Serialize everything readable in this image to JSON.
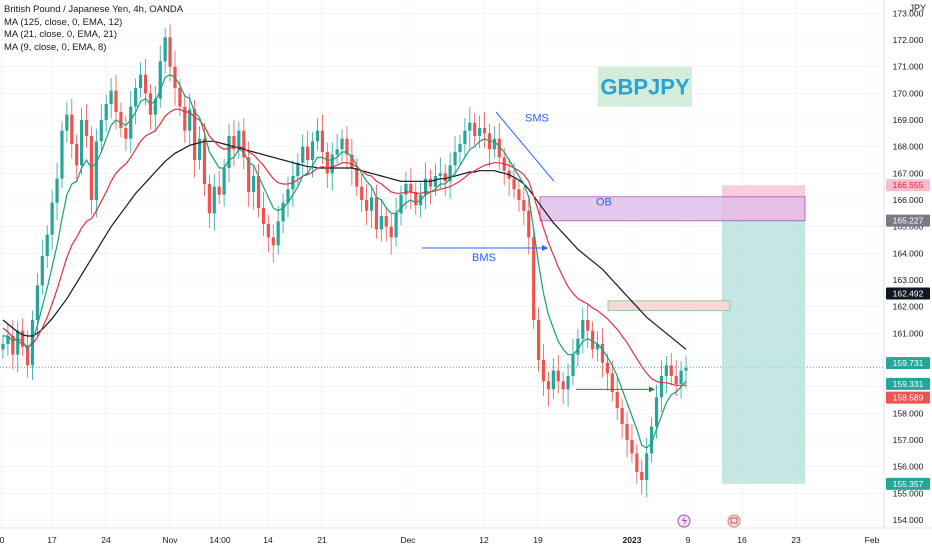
{
  "legend": {
    "title": "British Pound / Japanese Yen, 4h, OANDA",
    "ma_lines": [
      "MA (125, close, 0, EMA, 12)",
      "MA (21, close, 0, EMA, 21)",
      "MA (9, close, 0, EMA, 8)"
    ]
  },
  "watermark": "GBPJPY",
  "price_axis_title": "JPY",
  "colors": {
    "up": "#26a69a",
    "down": "#ef5350",
    "ma125": "#131722",
    "ma21": "#e03040",
    "ma9": "#1a9e7a",
    "annotation_blue": "#2962ff",
    "ob_fill": "#e1bee7",
    "stop_fill": "#f8bbd0",
    "target_fill": "#b2dfdb"
  },
  "chart_data": {
    "type": "candlestick",
    "instrument": "GBPJPY",
    "timeframe": "4h",
    "ylim": [
      153.7,
      173.5
    ],
    "y_ticks": [
      154.0,
      155.0,
      156.0,
      157.0,
      158.0,
      159.0,
      160.0,
      161.0,
      162.0,
      163.0,
      164.0,
      165.0,
      166.0,
      167.0,
      168.0,
      169.0,
      170.0,
      171.0,
      172.0,
      173.0
    ],
    "x_ticks": [
      "0",
      "17",
      "24",
      "Nov",
      "14:00",
      "14",
      "21",
      "Dec",
      "12",
      "19",
      "2023",
      "9",
      "16",
      "23",
      "Feb"
    ],
    "closes": [
      160.6,
      160.9,
      160.2,
      161.1,
      160.5,
      159.8,
      161.5,
      162.8,
      163.9,
      164.7,
      165.9,
      166.8,
      168.6,
      169.2,
      168.1,
      167.3,
      169.0,
      168.4,
      166.0,
      168.2,
      169.0,
      169.6,
      170.1,
      169.3,
      168.7,
      168.3,
      169.5,
      170.2,
      170.7,
      170.0,
      169.2,
      169.8,
      171.2,
      172.1,
      171.0,
      170.2,
      169.5,
      168.6,
      169.4,
      167.5,
      168.3,
      166.6,
      165.5,
      166.5,
      166.2,
      167.2,
      168.4,
      167.9,
      168.6,
      167.6,
      166.3,
      166.9,
      165.7,
      165.1,
      164.6,
      164.3,
      165.2,
      165.9,
      166.4,
      166.9,
      167.4,
      168.0,
      167.5,
      168.2,
      168.6,
      167.8,
      167.0,
      167.7,
      167.9,
      168.3,
      167.7,
      167.2,
      166.5,
      166.0,
      165.6,
      166.1,
      164.9,
      165.4,
      165.0,
      164.6,
      165.5,
      166.2,
      166.6,
      166.3,
      165.8,
      166.2,
      166.8,
      166.5,
      166.9,
      167.0,
      166.7,
      167.3,
      167.8,
      168.1,
      168.6,
      168.9,
      168.4,
      168.7,
      168.5,
      167.9,
      168.3,
      167.6,
      167.1,
      166.8,
      166.4,
      166.0,
      165.6,
      164.6,
      161.5,
      160.0,
      159.2,
      158.9,
      159.6,
      159.2,
      158.9,
      159.4,
      160.2,
      160.8,
      161.5,
      161.1,
      160.4,
      160.6,
      159.9,
      159.5,
      158.8,
      158.2,
      157.6,
      157.0,
      156.5,
      155.8,
      155.5,
      156.5,
      157.5,
      158.6,
      159.4,
      159.8,
      159.4,
      159.1,
      159.6,
      159.7
    ],
    "series": [
      {
        "name": "MA (125, close, 0, EMA, 12)",
        "values": [
          161.5,
          161.35,
          161.2,
          161.05,
          160.95,
          160.9,
          160.9,
          161.0,
          161.15,
          161.35,
          161.55,
          161.8,
          162.05,
          162.3,
          162.6,
          162.9,
          163.2,
          163.5,
          163.8,
          164.1,
          164.4,
          164.7,
          165.0,
          165.25,
          165.5,
          165.75,
          166.0,
          166.25,
          166.45,
          166.65,
          166.85,
          167.05,
          167.25,
          167.45,
          167.6,
          167.75,
          167.85,
          167.95,
          168.05,
          168.1,
          168.15,
          168.2,
          168.2,
          168.2,
          168.15,
          168.1,
          168.05,
          168.0,
          167.95,
          167.9,
          167.85,
          167.8,
          167.75,
          167.7,
          167.65,
          167.6,
          167.55,
          167.5,
          167.45,
          167.4,
          167.35,
          167.3,
          167.25,
          167.25,
          167.2,
          167.2,
          167.2,
          167.2,
          167.2,
          167.2,
          167.2,
          167.2,
          167.15,
          167.1,
          167.05,
          167.0,
          166.95,
          166.9,
          166.85,
          166.8,
          166.75,
          166.7,
          166.7,
          166.7,
          166.7,
          166.7,
          166.7,
          166.7,
          166.75,
          166.8,
          166.8,
          166.85,
          166.9,
          166.95,
          167.0,
          167.05,
          167.05,
          167.1,
          167.1,
          167.1,
          167.1,
          167.05,
          167.0,
          166.95,
          166.85,
          166.75,
          166.6,
          166.4,
          166.15,
          165.9,
          165.65,
          165.4,
          165.15,
          164.95,
          164.75,
          164.55,
          164.35,
          164.15,
          164.0,
          163.85,
          163.7,
          163.55,
          163.4,
          163.2,
          163.0,
          162.8,
          162.6,
          162.4,
          162.2,
          162.0,
          161.8,
          161.6,
          161.45,
          161.3,
          161.15,
          161.0,
          160.85,
          160.7,
          160.55,
          160.4
        ]
      },
      {
        "name": "MA (21, close, 0, EMA, 21)",
        "values": [
          161.2,
          161.05,
          160.85,
          160.7,
          160.6,
          160.5,
          160.6,
          160.85,
          161.2,
          161.6,
          162.1,
          162.65,
          163.25,
          163.85,
          164.3,
          164.6,
          164.95,
          165.2,
          165.3,
          165.6,
          165.95,
          166.3,
          166.7,
          167.0,
          167.2,
          167.35,
          167.6,
          167.9,
          168.2,
          168.4,
          168.5,
          168.6,
          168.85,
          169.15,
          169.3,
          169.4,
          169.4,
          169.3,
          169.3,
          169.1,
          169.0,
          168.75,
          168.4,
          168.2,
          168.0,
          167.9,
          167.95,
          167.95,
          168.0,
          167.95,
          167.8,
          167.7,
          167.5,
          167.3,
          167.05,
          166.8,
          166.65,
          166.6,
          166.6,
          166.65,
          166.75,
          166.9,
          166.95,
          167.05,
          167.2,
          167.25,
          167.2,
          167.25,
          167.3,
          167.4,
          167.4,
          167.35,
          167.25,
          167.1,
          166.95,
          166.9,
          166.7,
          166.6,
          166.45,
          166.3,
          166.25,
          166.25,
          166.3,
          166.3,
          166.25,
          166.25,
          166.3,
          166.3,
          166.35,
          166.4,
          166.45,
          166.5,
          166.6,
          166.7,
          166.85,
          167.0,
          167.1,
          167.2,
          167.3,
          167.35,
          167.4,
          167.4,
          167.35,
          167.3,
          167.2,
          167.1,
          166.95,
          166.7,
          166.15,
          165.55,
          164.95,
          164.4,
          163.95,
          163.5,
          163.1,
          162.75,
          162.5,
          162.3,
          162.2,
          162.1,
          161.95,
          161.85,
          161.7,
          161.55,
          161.35,
          161.15,
          160.9,
          160.65,
          160.35,
          160.05,
          159.75,
          159.5,
          159.3,
          159.2,
          159.15,
          159.15,
          159.1,
          159.05,
          159.05,
          159.05
        ]
      },
      {
        "name": "MA (9, close, 0, EMA, 8)",
        "values": [
          160.9,
          160.9,
          160.7,
          160.8,
          160.7,
          160.4,
          160.7,
          161.3,
          162.0,
          162.7,
          163.5,
          164.3,
          165.3,
          166.2,
          166.6,
          166.7,
          167.2,
          167.5,
          167.2,
          167.4,
          167.8,
          168.3,
          168.8,
          169.0,
          168.9,
          168.8,
          169.0,
          169.3,
          169.7,
          169.8,
          169.6,
          169.7,
          170.1,
          170.6,
          170.7,
          170.6,
          170.3,
          169.9,
          169.8,
          169.3,
          169.1,
          168.5,
          167.8,
          167.5,
          167.2,
          167.2,
          167.5,
          167.6,
          167.9,
          167.8,
          167.4,
          167.3,
          166.9,
          166.5,
          166.1,
          165.7,
          165.6,
          165.7,
          165.9,
          166.2,
          166.5,
          166.9,
          167.0,
          167.3,
          167.6,
          167.6,
          167.5,
          167.5,
          167.6,
          167.8,
          167.8,
          167.6,
          167.3,
          167.0,
          166.7,
          166.5,
          166.1,
          166.0,
          165.7,
          165.5,
          165.5,
          165.7,
          165.9,
          166.0,
          165.9,
          166.0,
          166.2,
          166.3,
          166.4,
          166.6,
          166.6,
          166.8,
          167.0,
          167.3,
          167.6,
          167.9,
          168.0,
          168.2,
          168.3,
          168.2,
          168.2,
          168.0,
          167.8,
          167.5,
          167.2,
          166.9,
          166.6,
          166.1,
          164.9,
          163.6,
          162.5,
          161.7,
          161.2,
          160.7,
          160.4,
          160.2,
          160.2,
          160.4,
          160.7,
          160.8,
          160.7,
          160.6,
          160.4,
          160.1,
          159.8,
          159.4,
          158.9,
          158.4,
          157.9,
          157.4,
          156.8,
          156.7,
          156.9,
          157.4,
          157.9,
          158.4,
          158.7,
          158.8,
          159.0,
          159.2
        ]
      }
    ]
  },
  "annotations": {
    "sms": {
      "label": "SMS"
    },
    "bms": {
      "label": "BMS",
      "price": 164.2
    },
    "ob": {
      "label": "OB",
      "from": 165.22,
      "to": 166.12
    },
    "small_zone": {
      "from": 161.85,
      "to": 162.22
    },
    "green_arrow_price": 158.9,
    "position": {
      "entry": 165.227,
      "stop": 166.555,
      "target": 155.357
    }
  },
  "price_labels": [
    {
      "value": "166.555",
      "price": 166.555,
      "bg": "#f8bbd0",
      "fg": "#d32f2f"
    },
    {
      "value": "165.227",
      "price": 165.227,
      "bg": "#787b86",
      "fg": "#ffffff"
    },
    {
      "value": "162.492",
      "price": 162.492,
      "bg": "#131722",
      "fg": "#ffffff"
    },
    {
      "value": "159.731",
      "price": 159.731,
      "bg": "#26a69a",
      "fg": "#ffffff"
    },
    {
      "value": "159.331",
      "price": 159.331,
      "bg": "#26a69a",
      "fg": "#ffffff"
    },
    {
      "value": "158.589",
      "price": 158.589,
      "bg": "#ef5350",
      "fg": "#ffffff"
    },
    {
      "value": "155.357",
      "price": 155.357,
      "bg": "#26a69a",
      "fg": "#ffffff"
    }
  ]
}
